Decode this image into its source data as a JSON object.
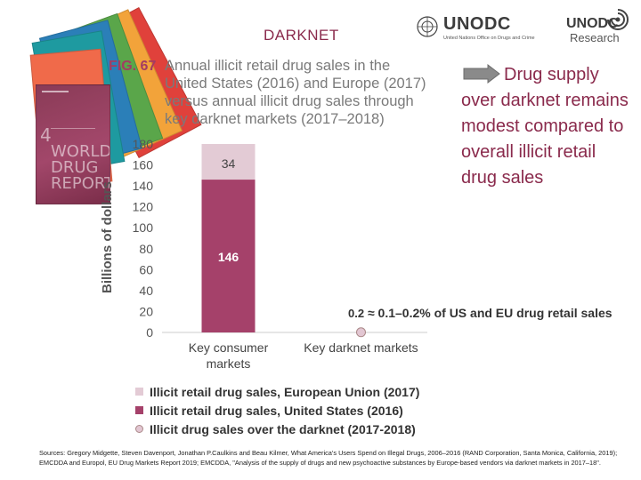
{
  "header": {
    "slide_title": "DARKNET",
    "unodc_name": "UNODC",
    "unodc_subtitle": "United Nations Office on Drugs and Crime",
    "research_word1": "UNODC",
    "research_word2": "Research"
  },
  "report_cover": {
    "number": "4",
    "title_line1": "WORLD",
    "title_line2": "DRUG",
    "title_line3": "REPORT"
  },
  "figure": {
    "label": "FIG. 67",
    "caption": "Annual illicit retail drug sales in the United States (2016) and Europe (2017) versus annual illicit drug sales through key darknet markets (2017–2018)"
  },
  "callout": {
    "text": "Drug supply over darknet remains modest compared to overall illicit retail drug sales"
  },
  "chart_data": {
    "type": "bar",
    "stacked": true,
    "ylabel": "Billions of dollars",
    "ylim": [
      0,
      180
    ],
    "yticks": [
      "0",
      "20",
      "40",
      "60",
      "80",
      "100",
      "120",
      "140",
      "160",
      "180"
    ],
    "categories": [
      "Key consumer markets",
      "Key darknet markets"
    ],
    "category_lines": [
      [
        "Key consumer",
        "markets"
      ],
      [
        "Key darknet markets"
      ]
    ],
    "series": [
      {
        "name": "Illicit retail drug sales, United States (2016)",
        "values": [
          146,
          0
        ],
        "labels": [
          "146",
          ""
        ],
        "color": "#a5416a"
      },
      {
        "name": "Illicit retail drug sales, European Union (2017)",
        "values": [
          34,
          0
        ],
        "labels": [
          "34",
          ""
        ],
        "color": "#e3cbd5"
      },
      {
        "name": "Illicit drug sales over the darknet (2017-2018)",
        "values": [
          0,
          0.2
        ],
        "labels": [
          "",
          "0.2"
        ],
        "color": "#e2c6d2",
        "marker": "dot"
      }
    ],
    "annotation": {
      "value": "0.2",
      "text": "≈ 0.1–0.2% of US and EU drug retail sales"
    }
  },
  "legend": [
    {
      "label": "Illicit retail drug sales, European Union (2017)",
      "color": "#e3cbd5",
      "shape": "square"
    },
    {
      "label": "Illicit retail drug sales, United States (2016)",
      "color": "#a5416a",
      "shape": "square"
    },
    {
      "label": "Illicit drug sales over the darknet (2017-2018)",
      "color": "#e2c6d2",
      "shape": "dot"
    }
  ],
  "sources": "Sources: Gregory Midgette, Steven Davenport, Jonathan P.Caulkins and Beau Kilmer, What America's Users Spend on Illegal Drugs, 2006–2016 (RAND Corporation, Santa Monica, California, 2019); EMCDDA and Europol, EU Drug Markets Report 2019; EMCDDA, \"Analysis of the supply of drugs and new psychoactive substances by Europe-based vendors via darknet markets in 2017–18\"."
}
